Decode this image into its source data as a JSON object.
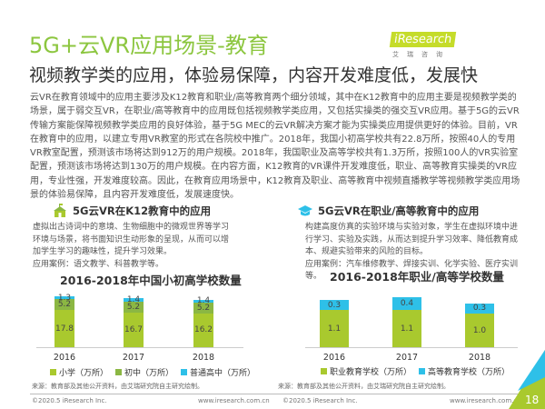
{
  "header": {
    "title": "5G+云VR应用场景-教育",
    "subtitle": "视频教学类的应用，体验易保障，内容开发难度低，发展快",
    "logo": "iResearch",
    "logo_cn": "艾瑞咨询"
  },
  "body": "云VR在教育领域中的应用主要涉及K12教育和职业/高等教育两个细分领域，其中在K12教育中的应用主要是视频教学类的场景，属于弱交互VR，在职业/高等教育中的应用既包括视频教学类应用，又包括实操类的强交互VR应用。基于5G的云VR传输方案能保障视频教学类应用的良好体验，基于5G MEC的云VR解决方案才能为实操类应用提供更好的体验。目前，VR在教育中的应用，以建立专用VR教室的形式在各院校中推广。2018年，我国小初高学校共有22.8万所，按照40人的专用VR教室配置，预测该市场将达到912万的用户规模。2018年，我国职业及高等学校共有1.3万所，按照100人的VR实验室配置，预测该市场将达到130万的用户规模。在内容方面，K12教育的VR课件开发难度低，职业、高等教育实操类的VR应用，专业性强，开发难度较高。因此，在教育应用场景中，K12教育及职业、高等教育中视频直播教学等视频教学类应用场景的体验易保障，且内容开发难度低，发展速度快。",
  "left": {
    "heading": "5G云VR在K12教育中的应用",
    "desc": "虚拟出古诗词中的意境、生物细胞中的微观世界等学习环境与场景，将书面知识生动形象的呈现，从而可以增加学生学习的趣味性，提升学习效果。",
    "case": "应用案例：语文教学、科普教学等。",
    "source": "来源：教育部及其他公开资料，由艾瑞研究院自主研究绘制。"
  },
  "right": {
    "heading": "5G云VR在职业/高等教育中的应用",
    "desc": "构建高度仿真的实验环境与实验对象，学生在虚拟环境中进行学习、实验及实践，从而达到提升学习效率、降低教育成本、规避实验带来的风险的目标。",
    "case": "应用案例：汽车维修教学、焊接实训、化学实验、医疗实训等。",
    "source": "来源：教育部及其他公开资料，由艾瑞研究院自主研究绘制。"
  },
  "footer": {
    "copyright": "©2020.5 iResearch Inc.",
    "url": "www.iresearch.com.cn",
    "page": "18"
  },
  "chart_data": [
    {
      "type": "bar",
      "stacked": true,
      "title": "2016-2018年中国小初高学校数量",
      "categories": [
        "2016",
        "2017",
        "2018"
      ],
      "series": [
        {
          "name": "小学（万所）",
          "values": [
            17.8,
            16.7,
            16.2
          ],
          "color": "#a9c92e"
        },
        {
          "name": "初中（万所）",
          "values": [
            5.2,
            5.2,
            5.2
          ],
          "color": "#8bb743"
        },
        {
          "name": "普通高中（万所）",
          "values": [
            1.3,
            1.4,
            1.4
          ],
          "color": "#2ec0e8"
        }
      ]
    },
    {
      "type": "bar",
      "stacked": true,
      "title": "2016-2018年职业/高等学校数量",
      "categories": [
        "2016",
        "2017",
        "2018"
      ],
      "series": [
        {
          "name": "职业教育学校（万所）",
          "values": [
            1.1,
            1.1,
            1.0
          ],
          "color": "#a9c92e"
        },
        {
          "name": "高等教育学校（万所）",
          "values": [
            0.3,
            0.4,
            0.3
          ],
          "color": "#2ec0e8"
        }
      ]
    }
  ]
}
